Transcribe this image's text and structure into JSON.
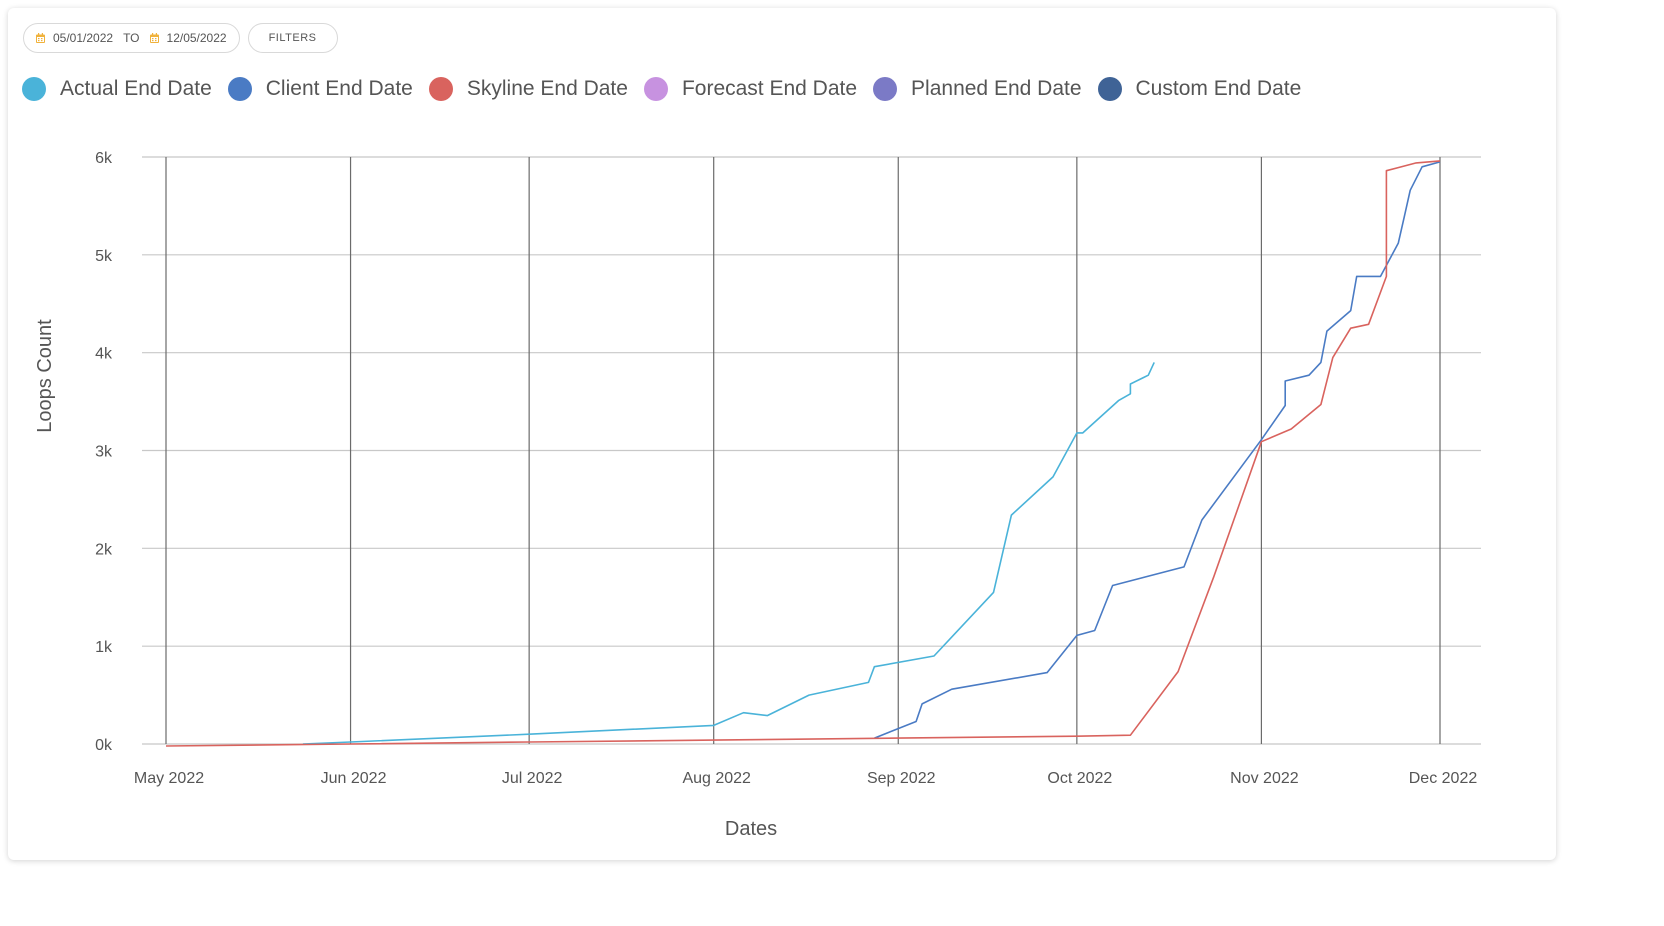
{
  "toolbar": {
    "date_from": "05/01/2022",
    "to_label": "TO",
    "date_to": "12/05/2022",
    "filters_label": "FILTERS",
    "calendar_icon": "calendar-icon",
    "calendar_icon_color": "#f0b23c"
  },
  "chart_data": {
    "type": "line",
    "xlabel": "Dates",
    "ylabel": "Loops Count",
    "xlim": [
      "2022-05-01",
      "2022-12-01"
    ],
    "ylim": [
      0,
      6000
    ],
    "x_ticks": [
      {
        "date": "2022-05-01",
        "label": "May 2022"
      },
      {
        "date": "2022-06-01",
        "label": "Jun 2022"
      },
      {
        "date": "2022-07-01",
        "label": "Jul 2022"
      },
      {
        "date": "2022-08-01",
        "label": "Aug 2022"
      },
      {
        "date": "2022-09-01",
        "label": "Sep 2022"
      },
      {
        "date": "2022-10-01",
        "label": "Oct 2022"
      },
      {
        "date": "2022-11-01",
        "label": "Nov 2022"
      },
      {
        "date": "2022-12-01",
        "label": "Dec 2022"
      }
    ],
    "y_ticks": [
      {
        "value": 0,
        "label": "0k"
      },
      {
        "value": 1000,
        "label": "1k"
      },
      {
        "value": 2000,
        "label": "2k"
      },
      {
        "value": 3000,
        "label": "3k"
      },
      {
        "value": 4000,
        "label": "4k"
      },
      {
        "value": 5000,
        "label": "5k"
      },
      {
        "value": 6000,
        "label": "6k"
      }
    ],
    "grid": true,
    "legend_position": "top-left",
    "series": [
      {
        "name": "Actual End Date",
        "color": "#4ab3d9",
        "points": [
          [
            "2022-05-24",
            0
          ],
          [
            "2022-06-01",
            20
          ],
          [
            "2022-07-01",
            100
          ],
          [
            "2022-08-01",
            190
          ],
          [
            "2022-08-06",
            320
          ],
          [
            "2022-08-10",
            290
          ],
          [
            "2022-08-17",
            500
          ],
          [
            "2022-08-27",
            630
          ],
          [
            "2022-08-28",
            790
          ],
          [
            "2022-09-07",
            900
          ],
          [
            "2022-09-17",
            1550
          ],
          [
            "2022-09-20",
            2340
          ],
          [
            "2022-09-27",
            2730
          ],
          [
            "2022-10-01",
            3180
          ],
          [
            "2022-10-02",
            3180
          ],
          [
            "2022-10-08",
            3510
          ],
          [
            "2022-10-10",
            3580
          ],
          [
            "2022-10-10",
            3680
          ],
          [
            "2022-10-13",
            3770
          ],
          [
            "2022-10-14",
            3900
          ]
        ]
      },
      {
        "name": "Client End Date",
        "color": "#4a7bc4",
        "points": [
          [
            "2022-08-28",
            60
          ],
          [
            "2022-09-04",
            230
          ],
          [
            "2022-09-05",
            410
          ],
          [
            "2022-09-10",
            560
          ],
          [
            "2022-09-26",
            730
          ],
          [
            "2022-10-01",
            1110
          ],
          [
            "2022-10-04",
            1160
          ],
          [
            "2022-10-07",
            1620
          ],
          [
            "2022-10-19",
            1810
          ],
          [
            "2022-10-22",
            2290
          ],
          [
            "2022-11-01",
            3110
          ],
          [
            "2022-11-05",
            3460
          ],
          [
            "2022-11-05",
            3710
          ],
          [
            "2022-11-09",
            3770
          ],
          [
            "2022-11-11",
            3900
          ],
          [
            "2022-11-12",
            4220
          ],
          [
            "2022-11-16",
            4430
          ],
          [
            "2022-11-17",
            4780
          ],
          [
            "2022-11-21",
            4780
          ],
          [
            "2022-11-24",
            5120
          ],
          [
            "2022-11-25",
            5390
          ],
          [
            "2022-11-26",
            5660
          ],
          [
            "2022-11-28",
            5900
          ],
          [
            "2022-12-01",
            5950
          ]
        ]
      },
      {
        "name": "Skyline End Date",
        "color": "#d9635e",
        "points": [
          [
            "2022-05-01",
            -20
          ],
          [
            "2022-06-01",
            0
          ],
          [
            "2022-07-01",
            20
          ],
          [
            "2022-08-01",
            40
          ],
          [
            "2022-09-01",
            60
          ],
          [
            "2022-10-01",
            80
          ],
          [
            "2022-10-10",
            90
          ],
          [
            "2022-10-18",
            740
          ],
          [
            "2022-10-24",
            1710
          ],
          [
            "2022-11-01",
            3090
          ],
          [
            "2022-11-06",
            3220
          ],
          [
            "2022-11-11",
            3470
          ],
          [
            "2022-11-13",
            3950
          ],
          [
            "2022-11-16",
            4250
          ],
          [
            "2022-11-19",
            4290
          ],
          [
            "2022-11-22",
            4780
          ],
          [
            "2022-11-22",
            5860
          ],
          [
            "2022-11-27",
            5940
          ],
          [
            "2022-12-01",
            5960
          ]
        ]
      },
      {
        "name": "Forecast End Date",
        "color": "#c792e0",
        "points": []
      },
      {
        "name": "Planned End Date",
        "color": "#7b7ac6",
        "points": []
      },
      {
        "name": "Custom End Date",
        "color": "#3f6396",
        "points": []
      }
    ]
  }
}
